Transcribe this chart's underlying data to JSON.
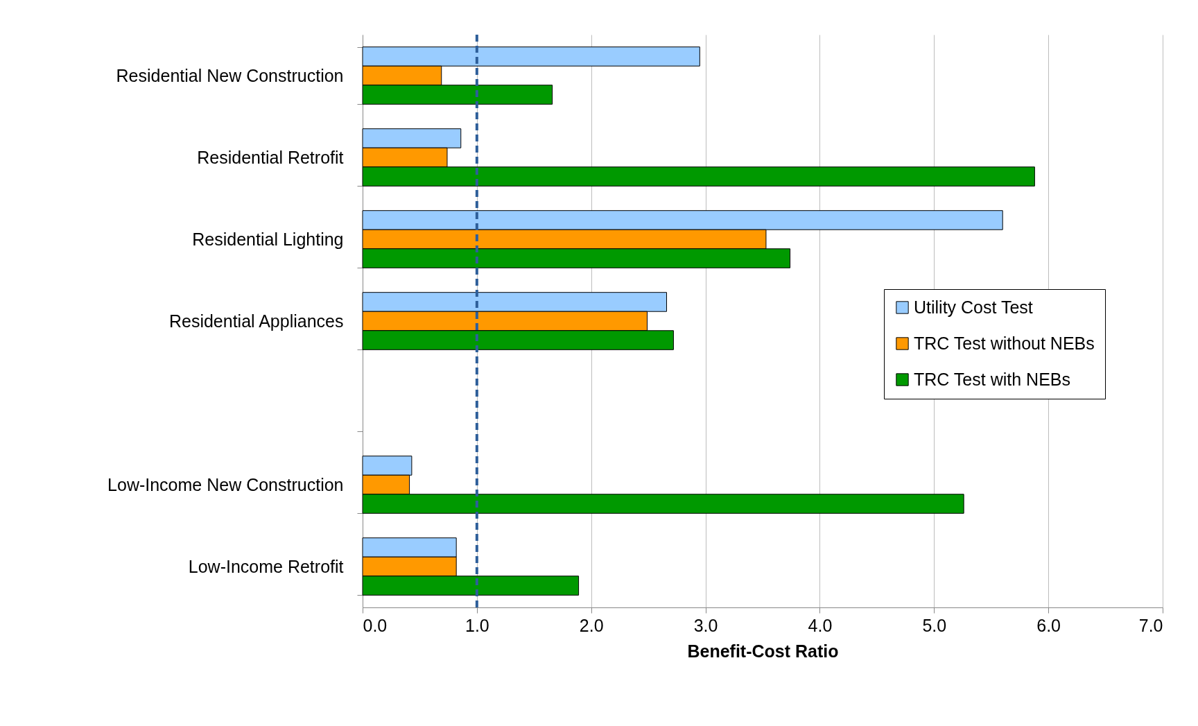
{
  "chart_data": {
    "type": "bar",
    "orientation": "horizontal",
    "xlabel": "Benefit-Cost Ratio",
    "categories": [
      "Residential New Construction",
      "Residential Retrofit",
      "Residential Lighting",
      "Residential Appliances",
      null,
      "Low-Income New Construction",
      "Low-Income Retrofit"
    ],
    "series": [
      {
        "name": "Utility Cost Test",
        "color": "#99ccff",
        "values": [
          2.95,
          0.86,
          5.6,
          2.66,
          null,
          0.43,
          0.82
        ]
      },
      {
        "name": "TRC Test without NEBs",
        "color": "#ff9900",
        "values": [
          0.69,
          0.74,
          3.53,
          2.49,
          null,
          0.41,
          0.82
        ]
      },
      {
        "name": "TRC Test with NEBs",
        "color": "#009900",
        "values": [
          1.66,
          5.88,
          3.74,
          2.72,
          null,
          5.26,
          1.89
        ]
      }
    ],
    "xlim": [
      0,
      7
    ],
    "xticks": [
      {
        "value": 0,
        "label": "0.0"
      },
      {
        "value": 1,
        "label": "1.0"
      },
      {
        "value": 2,
        "label": "2.0"
      },
      {
        "value": 3,
        "label": "3.0"
      },
      {
        "value": 4,
        "label": "4.0"
      },
      {
        "value": 5,
        "label": "5.0"
      },
      {
        "value": 6,
        "label": "6.0"
      },
      {
        "value": 7,
        "label": "7.0"
      }
    ],
    "ref_lines": [
      {
        "axis": "x",
        "value": 1,
        "color": "#2e5f9a",
        "line_style": "dashed"
      }
    ],
    "grid": "x",
    "legend": "right"
  }
}
